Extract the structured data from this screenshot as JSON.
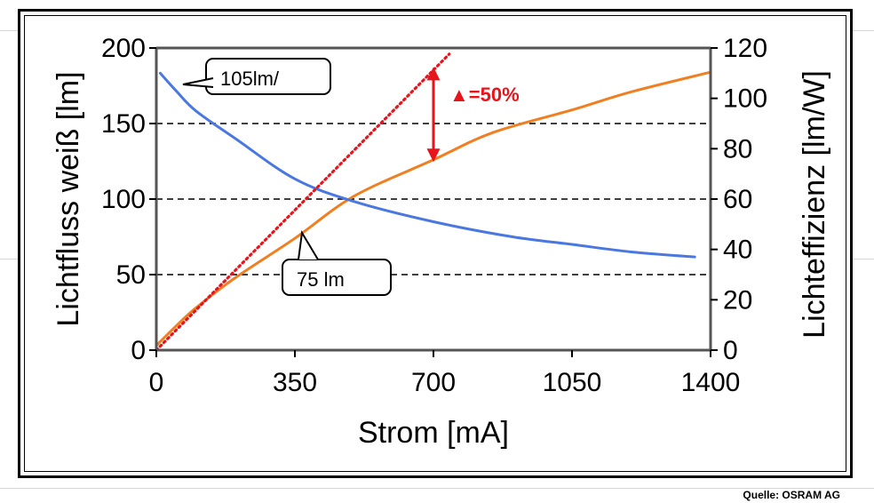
{
  "source_note": "Quelle: OSRAM AG",
  "chart_data": {
    "type": "line",
    "xlabel": "Strom [mA]",
    "ylabel_left": "Lichtfluss weiß [lm]",
    "ylabel_right": "Lichteffizienz [lm/W]",
    "xlim": [
      0,
      1400
    ],
    "ylim_left": [
      0,
      200
    ],
    "ylim_right": [
      0,
      120
    ],
    "x_ticks": [
      "0",
      "350",
      "700",
      "1050",
      "1400"
    ],
    "y_left_ticks": [
      "0",
      "50",
      "100",
      "150",
      "200"
    ],
    "y_right_ticks": [
      "0",
      "20",
      "40",
      "60",
      "80",
      "100",
      "120"
    ],
    "grid": "horizontal dashed",
    "series": [
      {
        "axis": "left",
        "color": "#f07f22",
        "style": "solid",
        "points": [
          [
            0,
            3
          ],
          [
            50,
            16
          ],
          [
            100,
            28
          ],
          [
            200,
            48
          ],
          [
            350,
            74
          ],
          [
            500,
            102
          ],
          [
            700,
            126
          ],
          [
            850,
            144
          ],
          [
            1050,
            159
          ],
          [
            1200,
            171
          ],
          [
            1400,
            184
          ]
        ]
      },
      {
        "axis": "right",
        "color": "#4a77e0",
        "style": "solid",
        "points": [
          [
            10,
            110
          ],
          [
            50,
            103
          ],
          [
            100,
            95
          ],
          [
            200,
            84
          ],
          [
            350,
            68
          ],
          [
            500,
            59
          ],
          [
            700,
            51
          ],
          [
            900,
            45
          ],
          [
            1050,
            42
          ],
          [
            1200,
            39
          ],
          [
            1360,
            37
          ]
        ]
      },
      {
        "axis": "left",
        "color": "#e8141c",
        "style": "dotted",
        "points": [
          [
            0,
            0
          ],
          [
            740,
            196
          ]
        ]
      }
    ],
    "annotations": [
      {
        "text": "105lm/",
        "color": "#000000"
      },
      {
        "text": "75 lm",
        "color": "#000000"
      },
      {
        "text": "▲=50%",
        "color": "#e8141c"
      }
    ]
  }
}
